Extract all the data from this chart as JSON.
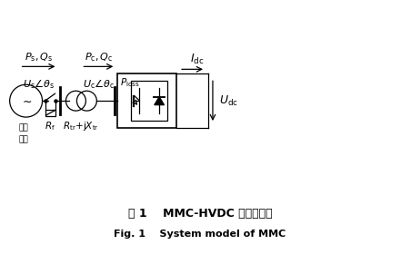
{
  "bg_color": "#ffffff",
  "title_cn": "图 1    MMC-HVDC 换流站模型",
  "title_en": "Fig. 1    System model of MMC",
  "fig_width": 4.41,
  "fig_height": 2.91,
  "dpi": 100
}
